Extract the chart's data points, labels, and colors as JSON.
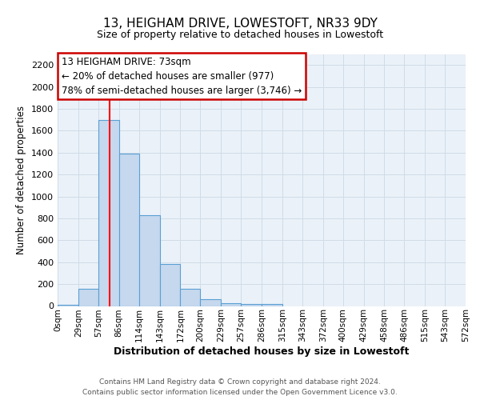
{
  "title": "13, HEIGHAM DRIVE, LOWESTOFT, NR33 9DY",
  "subtitle": "Size of property relative to detached houses in Lowestoft",
  "xlabel": "Distribution of detached houses by size in Lowestoft",
  "ylabel": "Number of detached properties",
  "bar_edges": [
    0,
    29,
    57,
    86,
    114,
    143,
    172,
    200,
    229,
    257,
    286,
    315,
    343,
    372,
    400,
    429,
    458,
    486,
    515,
    543,
    572
  ],
  "bar_heights": [
    10,
    155,
    1700,
    1390,
    830,
    380,
    160,
    65,
    25,
    20,
    20,
    0,
    0,
    0,
    0,
    0,
    0,
    0,
    0,
    0
  ],
  "bar_color": "#c5d8ed",
  "bar_edge_color": "#5a9fd4",
  "red_line_x": 73,
  "ylim": [
    0,
    2300
  ],
  "yticks": [
    0,
    200,
    400,
    600,
    800,
    1000,
    1200,
    1400,
    1600,
    1800,
    2000,
    2200
  ],
  "xtick_labels": [
    "0sqm",
    "29sqm",
    "57sqm",
    "86sqm",
    "114sqm",
    "143sqm",
    "172sqm",
    "200sqm",
    "229sqm",
    "257sqm",
    "286sqm",
    "315sqm",
    "343sqm",
    "372sqm",
    "400sqm",
    "429sqm",
    "458sqm",
    "486sqm",
    "515sqm",
    "543sqm",
    "572sqm"
  ],
  "annotation_text": "13 HEIGHAM DRIVE: 73sqm\n← 20% of detached houses are smaller (977)\n78% of semi-detached houses are larger (3,746) →",
  "annotation_box_color": "#ffffff",
  "annotation_box_edge": "#cc0000",
  "footer1": "Contains HM Land Registry data © Crown copyright and database right 2024.",
  "footer2": "Contains public sector information licensed under the Open Government Licence v3.0.",
  "grid_color": "#d0dce8",
  "background_color": "#eaf1f8",
  "title_fontsize": 11,
  "subtitle_fontsize": 9,
  "ylabel_fontsize": 8.5,
  "xlabel_fontsize": 9
}
